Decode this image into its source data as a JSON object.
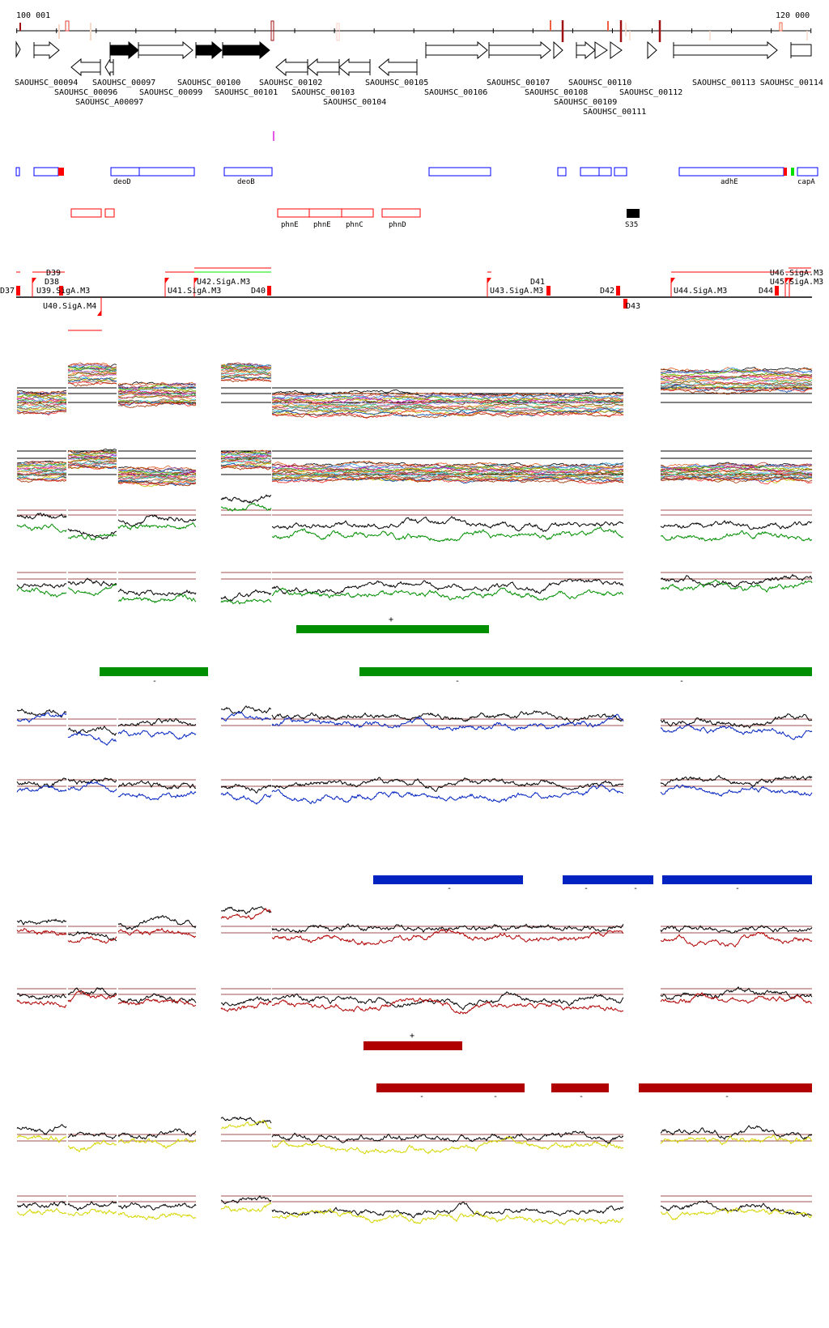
{
  "axis": {
    "start_label": "100 001",
    "end_label": "120 000"
  },
  "genes": [
    {
      "name": "SAOUHSC_00094",
      "strand": "+",
      "fill": "white"
    },
    {
      "name": "SAOUHSC_00096",
      "strand": "-",
      "fill": "white"
    },
    {
      "name": "SAOUHSC_A00097",
      "strand": "-",
      "fill": "white"
    },
    {
      "name": "SAOUHSC_00097",
      "strand": "+",
      "fill": "black"
    },
    {
      "name": "SAOUHSC_00099",
      "strand": "+",
      "fill": "white"
    },
    {
      "name": "SAOUHSC_00100",
      "strand": "+",
      "fill": "black"
    },
    {
      "name": "SAOUHSC_00101",
      "strand": "+",
      "fill": "black"
    },
    {
      "name": "SAOUHSC_00102",
      "strand": "-",
      "fill": "white"
    },
    {
      "name": "SAOUHSC_00103",
      "strand": "-",
      "fill": "white"
    },
    {
      "name": "SAOUHSC_00104",
      "strand": "-",
      "fill": "white"
    },
    {
      "name": "SAOUHSC_00105",
      "strand": "-",
      "fill": "white"
    },
    {
      "name": "SAOUHSC_00106",
      "strand": "+",
      "fill": "white"
    },
    {
      "name": "SAOUHSC_00107",
      "strand": "+",
      "fill": "white"
    },
    {
      "name": "SAOUHSC_00108",
      "strand": "+",
      "fill": "white"
    },
    {
      "name": "SAOUHSC_00109",
      "strand": "+",
      "fill": "white"
    },
    {
      "name": "SAOUHSC_00110",
      "strand": "+",
      "fill": "white"
    },
    {
      "name": "SAOUHSC_00111",
      "strand": "+",
      "fill": "white"
    },
    {
      "name": "SAOUHSC_00112",
      "strand": "+",
      "fill": "white"
    },
    {
      "name": "SAOUHSC_00113",
      "strand": "+",
      "fill": "white"
    },
    {
      "name": "SAOUHSC_00114",
      "strand": "+",
      "fill": "white"
    }
  ],
  "features_plus": [
    "deoD",
    "deoB",
    "adhE",
    "capA"
  ],
  "features_minus": [
    "phnE",
    "phnE",
    "phnC",
    "phnD",
    "S35"
  ],
  "promoters": [
    "D37",
    "U39.SigA.M3",
    "D38",
    "D39",
    "U40.SigA.M4",
    "U41.SigA.M3",
    "U42.SigA.M3",
    "D40",
    "U43.SigA.M3",
    "D41",
    "D42",
    "D43",
    "U44.SigA.M3",
    "D44",
    "U45.SigA.M3",
    "U46.SigA.M3"
  ],
  "segment_marks": {
    "green_plus": "+",
    "green_minus": [
      "-",
      "-",
      "-"
    ],
    "blue_minus": [
      "-",
      "-",
      "-",
      "-"
    ],
    "red_plus": "+",
    "red_minus": [
      "-",
      "-",
      "-",
      "-"
    ]
  },
  "colors": {
    "green": "#008f00",
    "blue": "#0022c0",
    "red": "#b00000",
    "yellow": "#d6d600",
    "feature_plus": "#0000ff",
    "feature_minus": "#ff0000",
    "threshold": "#a05050"
  }
}
